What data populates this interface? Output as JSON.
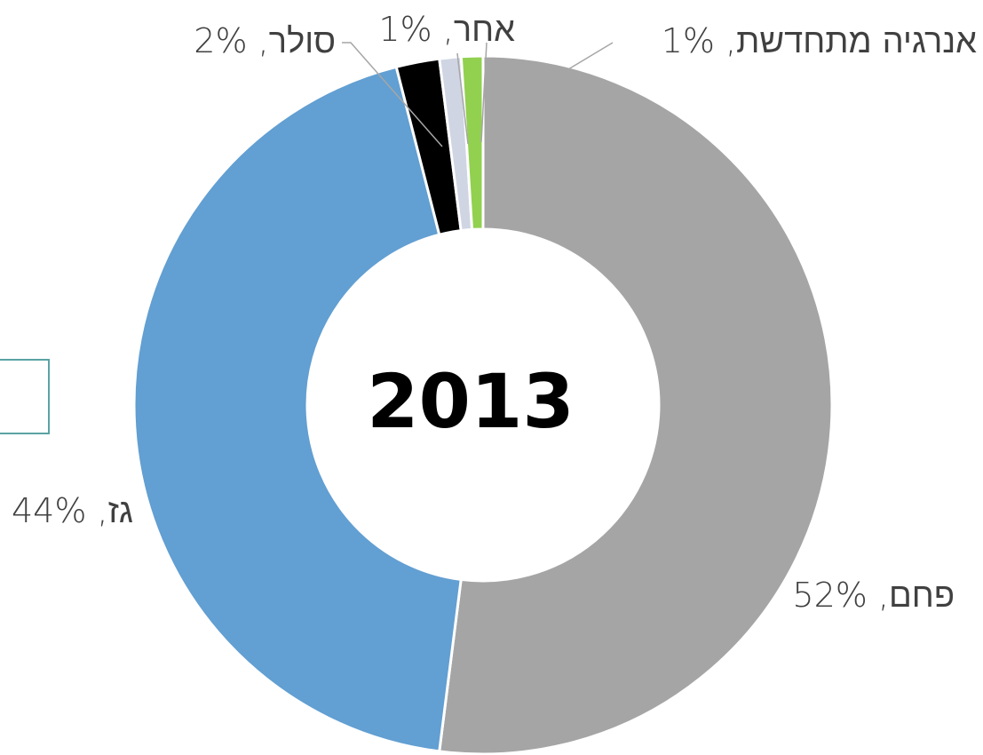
{
  "chart_data": {
    "type": "donut",
    "title": "2013",
    "categories": [
      "פחם",
      "גז",
      "סולר",
      "אחר",
      "אנרגיה מתחדשת"
    ],
    "values": [
      52,
      44,
      2,
      1,
      1
    ],
    "value_labels": [
      "52%",
      "44%",
      "2%",
      "1%",
      "1%"
    ],
    "label_separator": ", ",
    "colors": [
      "#a5a5a5",
      "#629fd2",
      "#000000",
      "#d0d5e3",
      "#92d050"
    ]
  }
}
